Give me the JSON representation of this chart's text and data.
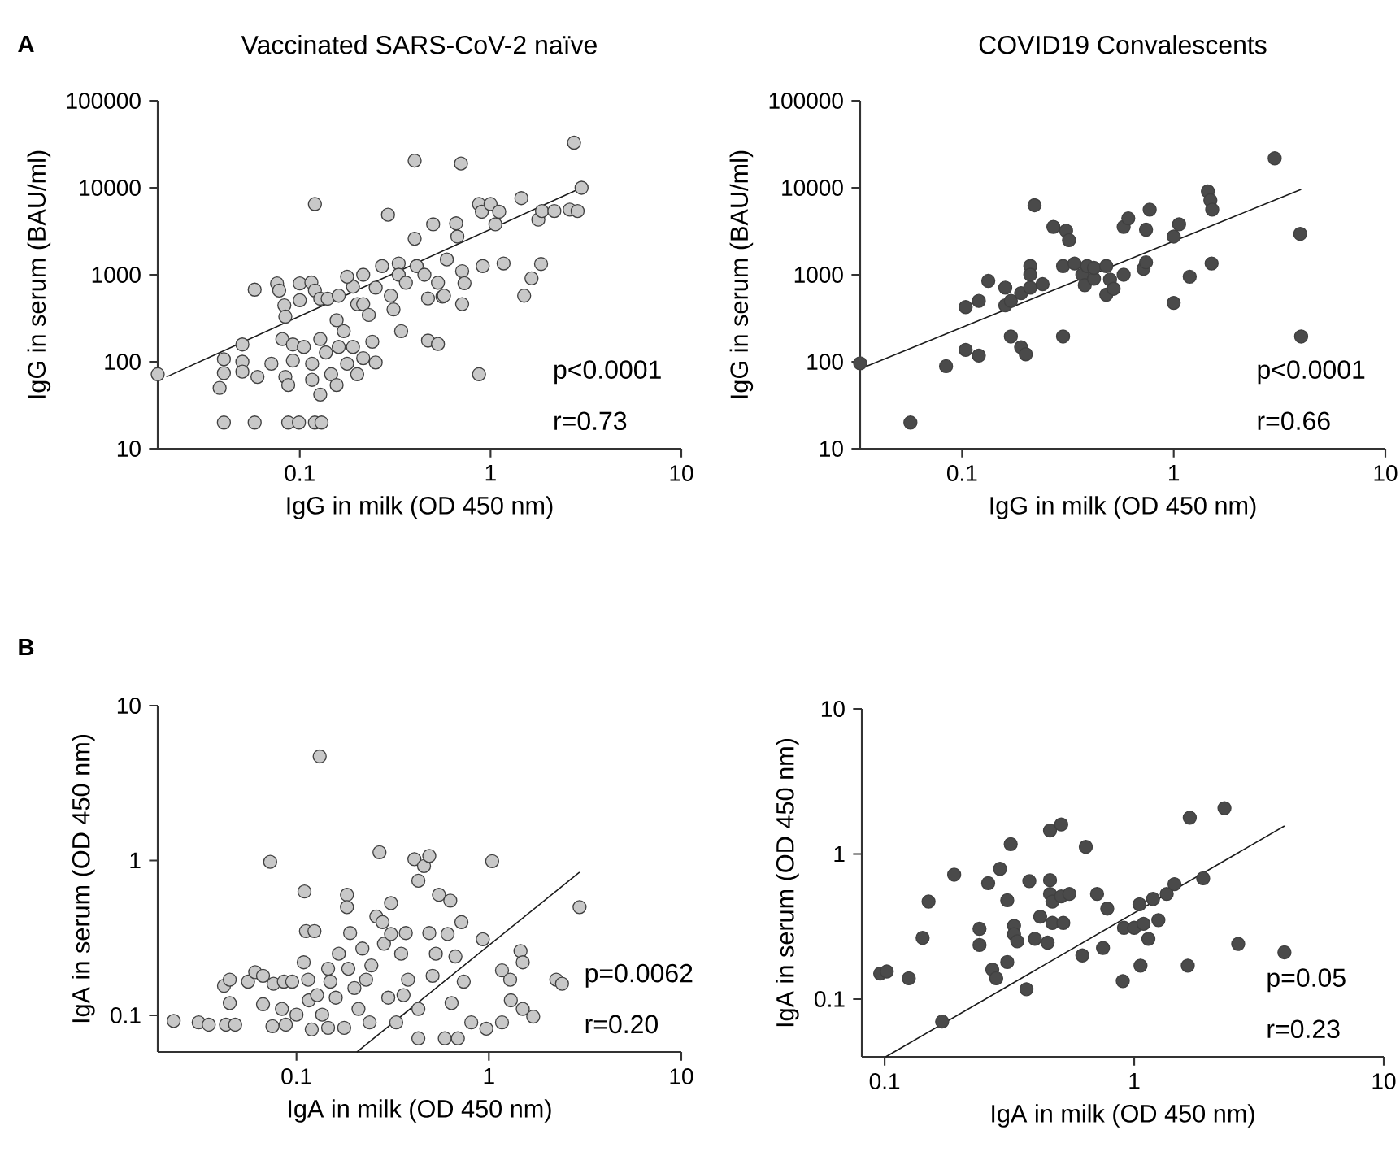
{
  "chart_data": [
    {
      "type": "scatter",
      "title": "Vaccinated SARS-CoV-2 naïve",
      "xlabel": "IgG in milk (OD 450 nm)",
      "ylabel": "IgG in serum (BAU/ml)",
      "log": "xy",
      "marker": "circle",
      "xlim": [
        0.018,
        10
      ],
      "ylim": [
        10,
        100000
      ],
      "xticks": [
        0.1,
        1,
        10
      ],
      "yticks": [
        10,
        100,
        1000,
        10000,
        100000
      ],
      "annotations": [
        "A",
        "p<0.0001",
        "r=0.73"
      ],
      "series": [
        {
          "color": "#c8c8c8",
          "x": [
            0.018,
            0.038,
            0.04,
            0.04,
            0.04,
            0.058,
            0.05,
            0.05,
            0.05,
            0.06,
            0.058,
            0.076,
            0.078,
            0.083,
            0.084,
            0.071,
            0.081,
            0.084,
            0.087,
            0.092,
            0.092,
            0.087,
            0.099,
            0.12,
            0.13,
            0.1,
            0.1,
            0.115,
            0.12,
            0.128,
            0.105,
            0.116,
            0.116,
            0.128,
            0.128,
            0.137,
            0.146,
            0.156,
            0.16,
            0.17,
            0.156,
            0.177,
            0.19,
            0.2,
            0.12,
            0.14,
            0.16,
            0.19,
            0.177,
            0.215,
            0.2,
            0.215,
            0.23,
            0.24,
            0.215,
            0.25,
            0.27,
            0.3,
            0.31,
            0.33,
            0.34,
            0.25,
            0.29,
            0.33,
            0.36,
            0.4,
            0.4,
            0.41,
            0.45,
            0.47,
            0.47,
            0.5,
            0.53,
            0.53,
            0.56,
            0.57,
            0.59,
            0.66,
            0.67,
            0.71,
            0.71,
            0.7,
            0.73,
            0.87,
            0.9,
            0.91,
            0.87,
            1.0,
            1.06,
            1.11,
            1.17,
            1.45,
            1.5,
            1.64,
            1.84,
            1.78,
            1.86,
            2.16,
            2.6,
            2.86,
            2.74,
            3.0
          ],
          "values": [
            72,
            50,
            74,
            107,
            20,
            20,
            158,
            100,
            77,
            67,
            675,
            795,
            660,
            445,
            330,
            95,
            182,
            67,
            54,
            158,
            103,
            20,
            20,
            20,
            20,
            795,
            510,
            815,
            660,
            530,
            148,
            95,
            62,
            42,
            182,
            128,
            72,
            54,
            148,
            225,
            300,
            95,
            148,
            72,
            6500,
            530,
            575,
            730,
            950,
            1000,
            460,
            460,
            345,
            170,
            110,
            710,
            1260,
            575,
            400,
            1350,
            225,
            98,
            4900,
            1000,
            810,
            2600,
            20500,
            1260,
            1000,
            535,
            175,
            3800,
            810,
            160,
            560,
            575,
            1500,
            3900,
            2750,
            1100,
            460,
            19000,
            800,
            6500,
            5300,
            1260,
            72,
            6500,
            3800,
            5300,
            1350,
            7600,
            575,
            910,
            1330,
            4300,
            5400,
            5400,
            5600,
            5400,
            33000,
            10000
          ]
        },
        {
          "type": "line",
          "marker": "none",
          "color": "#1a1a1a",
          "x": [
            0.02,
            3.0
          ],
          "values": [
            67,
            10000
          ]
        }
      ]
    },
    {
      "type": "scatter",
      "title": "COVID19 Convalescents",
      "xlabel": "IgG in milk (OD 450 nm)",
      "ylabel": "IgG in serum (BAU/ml)",
      "log": "xy",
      "marker": "circle",
      "xlim": [
        0.033,
        10
      ],
      "ylim": [
        10,
        100000
      ],
      "xticks": [
        0.1,
        1,
        10
      ],
      "yticks": [
        10,
        100,
        1000,
        10000,
        100000
      ],
      "annotations": [
        "p<0.0001",
        "r=0.66"
      ],
      "series": [
        {
          "color": "#4a4a4a",
          "x": [
            0.033,
            0.057,
            0.084,
            0.104,
            0.104,
            0.12,
            0.12,
            0.133,
            0.16,
            0.16,
            0.17,
            0.17,
            0.19,
            0.2,
            0.19,
            0.21,
            0.21,
            0.21,
            0.22,
            0.24,
            0.27,
            0.3,
            0.3,
            0.31,
            0.32,
            0.34,
            0.37,
            0.38,
            0.39,
            0.42,
            0.42,
            0.48,
            0.48,
            0.5,
            0.52,
            0.58,
            0.61,
            0.58,
            0.72,
            0.74,
            0.74,
            0.77,
            1.0,
            1.0,
            1.06,
            1.19,
            1.45,
            1.49,
            1.52,
            1.51,
            3.0,
            3.96,
            4.0
          ],
          "values": [
            96,
            20,
            89,
            425,
            137,
            500,
            118,
            850,
            710,
            445,
            195,
            500,
            147,
            122,
            615,
            710,
            1260,
            1000,
            6300,
            780,
            3550,
            1260,
            195,
            3200,
            2500,
            1350,
            1000,
            760,
            1260,
            900,
            1200,
            1260,
            590,
            880,
            690,
            3550,
            4450,
            1000,
            1170,
            3300,
            1390,
            5600,
            2750,
            475,
            3800,
            950,
            9100,
            7200,
            5600,
            1350,
            21800,
            2950,
            195
          ]
        },
        {
          "type": "line",
          "marker": "none",
          "color": "#1a1a1a",
          "x": [
            0.033,
            4.0
          ],
          "values": [
            83,
            9600
          ]
        }
      ]
    },
    {
      "type": "scatter",
      "xlabel": "IgA in milk (OD 450 nm)",
      "ylabel": "IgA in serum (OD 450 nm)",
      "log": "xy",
      "marker": "circle",
      "xlim": [
        0.019,
        10
      ],
      "ylim": [
        0.058,
        10
      ],
      "xticks": [
        0.1,
        1,
        10
      ],
      "yticks": [
        0.1,
        1,
        10
      ],
      "annotations": [
        "B",
        "p=0.0062",
        "r=0.20"
      ],
      "series": [
        {
          "color": "#c8c8c8",
          "x": [
            0.023,
            0.031,
            0.035,
            0.042,
            0.045,
            0.045,
            0.043,
            0.048,
            0.056,
            0.061,
            0.067,
            0.067,
            0.073,
            0.075,
            0.076,
            0.084,
            0.086,
            0.088,
            0.095,
            0.1,
            0.109,
            0.11,
            0.112,
            0.115,
            0.116,
            0.12,
            0.124,
            0.132,
            0.128,
            0.136,
            0.146,
            0.15,
            0.146,
            0.16,
            0.166,
            0.177,
            0.183,
            0.183,
            0.19,
            0.186,
            0.2,
            0.21,
            0.22,
            0.23,
            0.24,
            0.245,
            0.26,
            0.27,
            0.28,
            0.285,
            0.3,
            0.31,
            0.31,
            0.33,
            0.35,
            0.36,
            0.37,
            0.38,
            0.43,
            0.41,
            0.43,
            0.43,
            0.46,
            0.49,
            0.49,
            0.51,
            0.53,
            0.55,
            0.59,
            0.61,
            0.63,
            0.64,
            0.67,
            0.69,
            0.72,
            0.74,
            0.81,
            0.93,
            0.97,
            1.04,
            1.17,
            1.17,
            1.29,
            1.3,
            1.46,
            1.5,
            1.5,
            1.7,
            2.24,
            2.4,
            2.96
          ],
          "values": [
            0.092,
            0.09,
            0.087,
            0.155,
            0.17,
            0.12,
            0.087,
            0.087,
            0.165,
            0.19,
            0.18,
            0.118,
            0.98,
            0.085,
            0.16,
            0.11,
            0.165,
            0.087,
            0.165,
            0.101,
            0.22,
            0.63,
            0.35,
            0.17,
            0.125,
            0.081,
            0.35,
            4.7,
            0.135,
            0.101,
            0.2,
            0.165,
            0.083,
            0.13,
            0.25,
            0.083,
            0.6,
            0.5,
            0.34,
            0.2,
            0.15,
            0.11,
            0.27,
            0.17,
            0.09,
            0.21,
            0.435,
            1.13,
            0.4,
            0.29,
            0.13,
            0.53,
            0.335,
            0.09,
            0.25,
            0.135,
            0.34,
            0.17,
            0.11,
            1.02,
            0.74,
            0.071,
            0.92,
            1.07,
            0.34,
            0.18,
            0.25,
            0.6,
            0.071,
            0.335,
            0.55,
            0.12,
            0.24,
            0.071,
            0.4,
            0.165,
            0.09,
            0.31,
            0.082,
            0.99,
            0.195,
            0.09,
            0.17,
            0.125,
            0.26,
            0.22,
            0.11,
            0.098,
            0.17,
            0.16,
            0.5
          ]
        },
        {
          "type": "line",
          "marker": "none",
          "color": "#1a1a1a",
          "x": [
            0.206,
            2.96
          ],
          "values": [
            0.058,
            0.84
          ]
        }
      ]
    },
    {
      "type": "scatter",
      "xlabel": "IgA in milk (OD 450 nm)",
      "ylabel": "IgA in serum (OD 450 nm)",
      "log": "xy",
      "marker": "circle",
      "xlim": [
        0.081,
        10
      ],
      "ylim": [
        0.04,
        10
      ],
      "xticks": [
        0.1,
        1,
        10
      ],
      "yticks": [
        0.1,
        1,
        10
      ],
      "annotations": [
        "p=0.05",
        "r=0.23"
      ],
      "series": [
        {
          "color": "#4a4a4a",
          "x": [
            0.096,
            0.102,
            0.125,
            0.142,
            0.15,
            0.17,
            0.19,
            0.24,
            0.24,
            0.26,
            0.27,
            0.28,
            0.29,
            0.31,
            0.31,
            0.32,
            0.33,
            0.33,
            0.34,
            0.37,
            0.38,
            0.4,
            0.42,
            0.45,
            0.46,
            0.46,
            0.46,
            0.47,
            0.47,
            0.51,
            0.52,
            0.51,
            0.55,
            0.62,
            0.64,
            0.71,
            0.75,
            0.78,
            0.9,
            0.91,
            1.0,
            1.05,
            1.06,
            1.09,
            1.14,
            1.19,
            1.25,
            1.35,
            1.45,
            1.64,
            1.67,
            1.89,
            2.3,
            2.61,
            4.0
          ],
          "values": [
            0.15,
            0.155,
            0.139,
            0.264,
            0.47,
            0.07,
            0.72,
            0.236,
            0.305,
            0.63,
            0.16,
            0.139,
            0.79,
            0.18,
            0.48,
            1.17,
            0.32,
            0.28,
            0.25,
            0.117,
            0.65,
            0.26,
            0.37,
            0.245,
            0.66,
            1.45,
            0.53,
            0.47,
            0.335,
            1.6,
            0.335,
            0.51,
            0.53,
            0.2,
            1.12,
            0.53,
            0.225,
            0.42,
            0.133,
            0.31,
            0.31,
            0.45,
            0.17,
            0.33,
            0.26,
            0.49,
            0.35,
            0.53,
            0.62,
            0.17,
            1.78,
            0.68,
            2.07,
            0.24,
            0.21
          ]
        },
        {
          "type": "line",
          "marker": "none",
          "color": "#1a1a1a",
          "x": [
            0.101,
            4.0
          ],
          "values": [
            0.04,
            1.56
          ]
        }
      ]
    }
  ]
}
